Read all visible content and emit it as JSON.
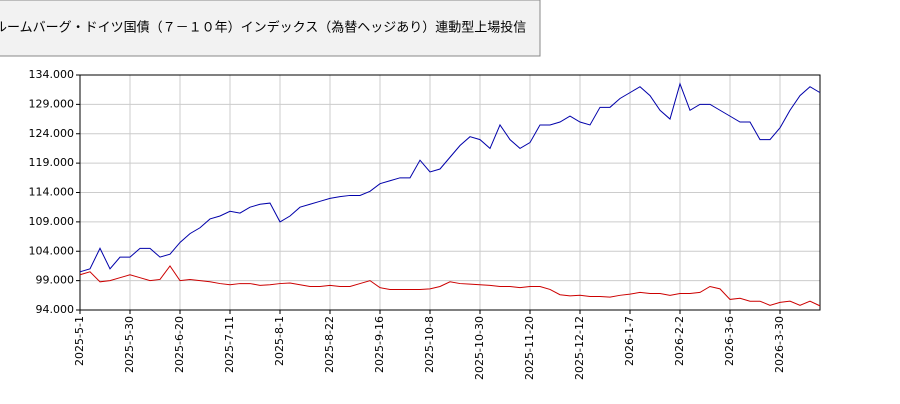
{
  "chart_data": {
    "type": "line",
    "title": "ルームバーグ・ドイツ国債（７－１０年）インデックス（為替ヘッジあり）連動型上場投信",
    "categories": [
      "2025-5-1",
      null,
      null,
      null,
      null,
      "2025-5-30",
      null,
      null,
      null,
      null,
      "2025-6-20",
      null,
      null,
      null,
      null,
      "2025-7-11",
      null,
      null,
      null,
      null,
      "2025-8-1",
      null,
      null,
      null,
      null,
      "2025-8-22",
      null,
      null,
      null,
      null,
      "2025-9-16",
      null,
      null,
      null,
      null,
      "2025-10-8",
      null,
      null,
      null,
      null,
      "2025-10-30",
      null,
      null,
      null,
      null,
      "2025-11-20",
      null,
      null,
      null,
      null,
      "2025-12-12",
      null,
      null,
      null,
      null,
      "2026-1-7",
      null,
      null,
      null,
      null,
      "2026-2-2",
      null,
      null,
      null,
      null,
      "2026-3-6",
      null,
      null,
      null,
      null,
      "2026-3-30",
      null,
      null,
      null,
      null
    ],
    "series": [
      {
        "color": "#0000aa",
        "values": [
          100.5,
          101,
          104.5,
          101,
          103,
          103,
          104.5,
          104.5,
          103,
          103.5,
          105.5,
          107,
          108,
          109.5,
          110,
          110.8,
          110.5,
          111.5,
          112,
          112.2,
          109,
          110,
          111.5,
          112,
          112.5,
          113,
          113.3,
          113.5,
          113.5,
          114.2,
          115.5,
          116,
          116.5,
          116.5,
          119.5,
          117.5,
          118,
          120,
          122,
          123.5,
          123,
          121.5,
          125.5,
          123,
          121.5,
          122.5,
          125.5,
          125.5,
          126,
          127,
          126,
          125.5,
          128.5,
          128.5,
          130,
          131,
          132,
          130.5,
          128,
          126.5,
          132.5,
          128,
          129,
          129,
          128,
          127,
          126,
          126,
          123,
          123,
          125,
          128,
          130.5,
          132,
          131
        ]
      },
      {
        "color": "#cc0000",
        "values": [
          100,
          100.5,
          98.8,
          99,
          99.5,
          100,
          99.5,
          99,
          99.2,
          101.5,
          99,
          99.2,
          99,
          98.8,
          98.5,
          98.3,
          98.5,
          98.5,
          98.2,
          98.3,
          98.5,
          98.6,
          98.3,
          98,
          98,
          98.2,
          98,
          98,
          98.5,
          99,
          97.8,
          97.5,
          97.5,
          97.5,
          97.5,
          97.6,
          98,
          98.8,
          98.5,
          98.4,
          98.3,
          98.2,
          98,
          98,
          97.8,
          98,
          98,
          97.5,
          96.6,
          96.4,
          96.5,
          96.3,
          96.3,
          96.2,
          96.5,
          96.7,
          97,
          96.8,
          96.8,
          96.5,
          96.8,
          96.8,
          97,
          98,
          97.6,
          95.8,
          96,
          95.5,
          95.5,
          94.8,
          95.3,
          95.5,
          94.8,
          95.5,
          94.7
        ]
      }
    ],
    "ylim": [
      94,
      134
    ],
    "yticks": [
      {
        "value": 94,
        "label": "94.000"
      },
      {
        "value": 99,
        "label": "99.000"
      },
      {
        "value": 104,
        "label": "104.000"
      },
      {
        "value": 109,
        "label": "109.000"
      },
      {
        "value": 114,
        "label": "114.000"
      },
      {
        "value": 119,
        "label": "119.000"
      },
      {
        "value": 124,
        "label": "124.000"
      },
      {
        "value": 129,
        "label": "129.000"
      },
      {
        "value": 134,
        "label": "134.000"
      }
    ],
    "grid": true
  }
}
